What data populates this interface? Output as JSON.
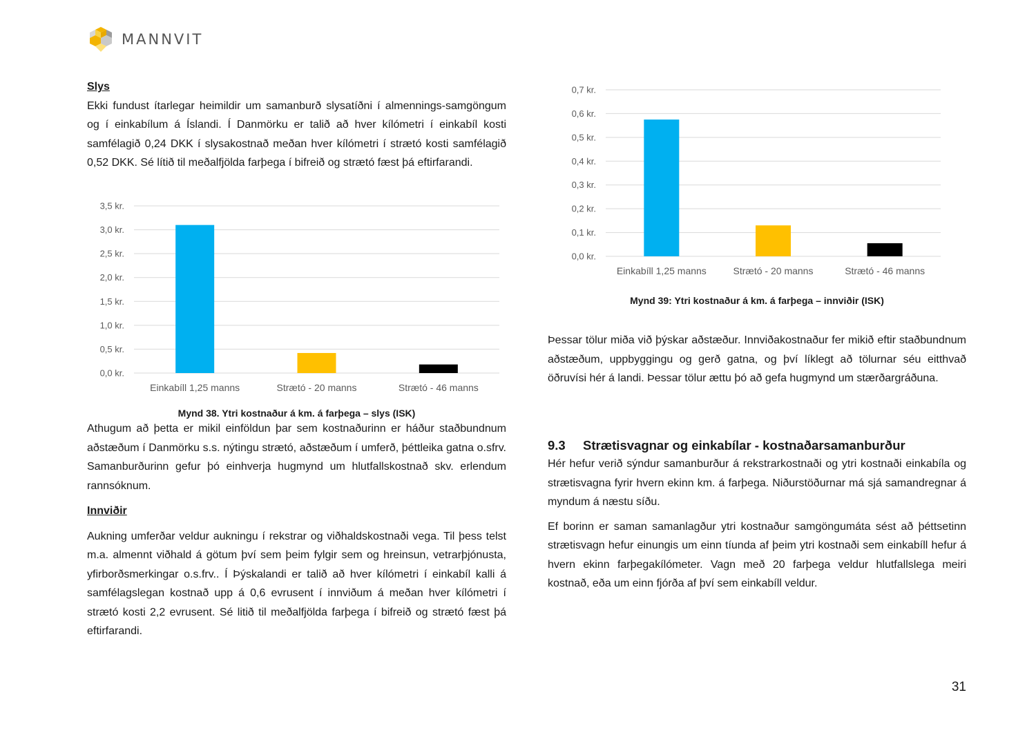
{
  "header": {
    "brand": "MANNVIT"
  },
  "left": {
    "slys_heading": "Slys",
    "slys_text": "Ekki fundust ítarlegar heimildir um samanburð slysatíðni í almennings-samgöngum og í einkabílum á Íslandi. Í Danmörku er talið að hver kílómetri í einkabíl kosti samfélagið 0,24 DKK í slysakostnað meðan hver kílómetri í strætó kosti samfélagið 0,52 DKK. Sé lítið til meðalfjölda farþega í bifreið og strætó fæst þá eftirfarandi.",
    "caption_38": "Mynd 38. Ytri kostnaður á km. á farþega – slys (ISK)",
    "athugum_text": "Athugum að þetta er mikil einföldun þar sem kostnaðurinn er háður staðbundnum aðstæðum í Danmörku s.s. nýtingu strætó, aðstæðum í umferð, þéttleika gatna o.sfrv. Samanburðurinn gefur þó einhverja hugmynd um hlutfallskostnað skv. erlendum rannsóknum.",
    "innvidir_heading": "Innviðir",
    "innvidir_text": "Aukning umferðar veldur aukningu í rekstrar og viðhaldskostnaði vega. Til þess telst m.a. almennt viðhald á götum því sem þeim fylgir sem og hreinsun, vetrarþjónusta, yfirborðsmerkingar o.s.frv.. Í Þýskalandi er talið að hver kílómetri í einkabíl kalli á samfélagslegan kostnað upp á 0,6 evrusent í innviðum á meðan hver kílómetri í strætó kosti 2,2 evrusent. Sé litið til meðalfjölda farþega í bifreið og strætó fæst þá eftirfarandi."
  },
  "right": {
    "caption_39": "Mynd 39: Ytri kostnaður á km. á farþega – innviðir (ISK)",
    "thessar_text": "Þessar tölur miða við þýskar aðstæður. Innviðakostnaður fer mikið eftir staðbundnum aðstæðum, uppbyggingu og gerð gatna, og því líklegt að tölurnar séu eitthvað öðruvísi hér á landi. Þessar tölur ættu þó að gefa hugmynd um stærðargráðuna.",
    "section_number": "9.3",
    "section_title": "Strætisvagnar og einkabílar - kostnaðarsamanburður",
    "section_p1": "Hér hefur verið sýndur samanburður á rekstrarkostnaði og ytri kostnaði einkabíla og strætisvagna fyrir hvern ekinn km. á farþega. Niðurstöðurnar má sjá samandregnar á myndum á næstu síðu.",
    "section_p2": "Ef borinn er saman samanlagður ytri kostnaður samgöngumáta sést að þéttsetinn strætisvagn hefur einungis um einn tíunda af þeim ytri kostnaði sem einkabíll hefur á hvern ekinn farþegakílómeter. Vagn með 20 farþega veldur hlutfallslega meiri kostnað, eða um einn fjórða af því sem einkabíll veldur."
  },
  "page_number": "31",
  "chart_data": [
    {
      "type": "bar",
      "categories": [
        "Einkabíll 1,25 manns",
        "Strætó - 20 manns",
        "Strætó - 46 manns"
      ],
      "values": [
        3.1,
        0.42,
        0.18
      ],
      "colors": [
        "#00b0f0",
        "#ffc000",
        "#000000"
      ],
      "ylim": [
        0,
        3.5
      ],
      "yticks": [
        "0,0 kr.",
        "0,5 kr.",
        "1,0 kr.",
        "1,5 kr.",
        "2,0 kr.",
        "2,5 kr.",
        "3,0 kr.",
        "3,5 kr."
      ],
      "grid": true,
      "title": "",
      "xlabel": "",
      "ylabel": ""
    },
    {
      "type": "bar",
      "categories": [
        "Einkabíll 1,25 manns",
        "Strætó - 20 manns",
        "Strætó - 46 manns"
      ],
      "values": [
        0.575,
        0.13,
        0.055
      ],
      "colors": [
        "#00b0f0",
        "#ffc000",
        "#000000"
      ],
      "ylim": [
        0,
        0.7
      ],
      "yticks": [
        "0,0 kr.",
        "0,1 kr.",
        "0,2 kr.",
        "0,3 kr.",
        "0,4 kr.",
        "0,5 kr.",
        "0,6 kr.",
        "0,7 kr."
      ],
      "grid": true,
      "title": "",
      "xlabel": "",
      "ylabel": ""
    }
  ]
}
